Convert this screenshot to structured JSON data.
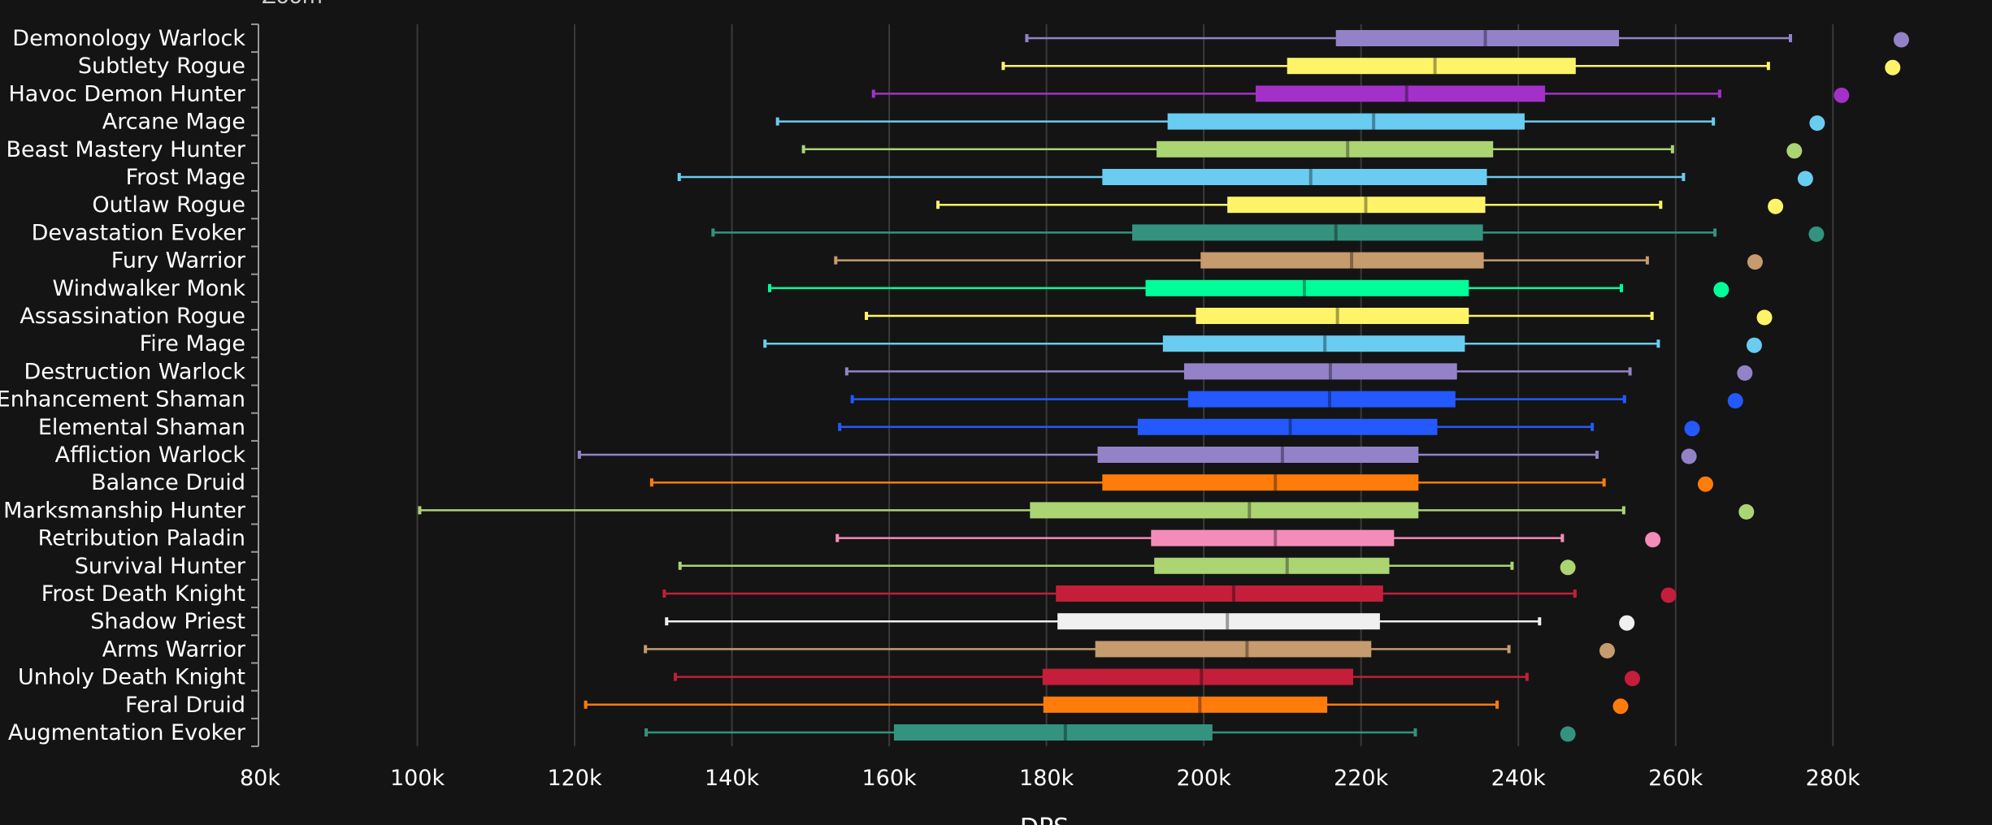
{
  "zoom_label": "Zoom",
  "chart_data": {
    "type": "boxplot",
    "orientation": "horizontal",
    "xlabel": "DPS",
    "xlim": [
      80000,
      290000
    ],
    "ticks": [
      80000,
      100000,
      120000,
      140000,
      160000,
      180000,
      200000,
      220000,
      240000,
      260000,
      280000
    ],
    "tick_labels": [
      "80k",
      "100k",
      "120k",
      "140k",
      "160k",
      "180k",
      "200k",
      "220k",
      "240k",
      "260k",
      "280k"
    ],
    "grid": true,
    "series": [
      {
        "name": "Demonology Warlock",
        "color": "#9482c9",
        "min": 177500,
        "q1": 216800,
        "median": 235800,
        "q3": 252800,
        "max": 274600,
        "outlier": 288700
      },
      {
        "name": "Subtlety Rogue",
        "color": "#fff468",
        "min": 174500,
        "q1": 210600,
        "median": 229400,
        "q3": 247300,
        "max": 271800,
        "outlier": 287600
      },
      {
        "name": "Havoc Demon Hunter",
        "color": "#a330c9",
        "min": 158000,
        "q1": 206600,
        "median": 225800,
        "q3": 243400,
        "max": 265600,
        "outlier": 281100
      },
      {
        "name": "Arcane Mage",
        "color": "#69ccf0",
        "min": 145800,
        "q1": 195400,
        "median": 221600,
        "q3": 240800,
        "max": 264800,
        "outlier": 278000
      },
      {
        "name": "Beast Mastery Hunter",
        "color": "#abd473",
        "min": 149100,
        "q1": 194000,
        "median": 218300,
        "q3": 236800,
        "max": 259600,
        "outlier": 275100
      },
      {
        "name": "Frost Mage",
        "color": "#69ccf0",
        "min": 133300,
        "q1": 187100,
        "median": 213600,
        "q3": 236000,
        "max": 261000,
        "outlier": 276500
      },
      {
        "name": "Outlaw Rogue",
        "color": "#fff468",
        "min": 166200,
        "q1": 203000,
        "median": 220600,
        "q3": 235800,
        "max": 258100,
        "outlier": 272700
      },
      {
        "name": "Devastation Evoker",
        "color": "#33937f",
        "min": 137600,
        "q1": 190900,
        "median": 216800,
        "q3": 235500,
        "max": 265000,
        "outlier": 277900
      },
      {
        "name": "Fury Warrior",
        "color": "#c69b6d",
        "min": 153200,
        "q1": 199600,
        "median": 218800,
        "q3": 235600,
        "max": 256400,
        "outlier": 270100
      },
      {
        "name": "Windwalker Monk",
        "color": "#00ff98",
        "min": 144800,
        "q1": 192600,
        "median": 212800,
        "q3": 233700,
        "max": 253100,
        "outlier": 265800
      },
      {
        "name": "Assassination Rogue",
        "color": "#fff468",
        "min": 157100,
        "q1": 199000,
        "median": 217000,
        "q3": 233700,
        "max": 257000,
        "outlier": 271300
      },
      {
        "name": "Fire Mage",
        "color": "#69ccf0",
        "min": 144200,
        "q1": 194800,
        "median": 215400,
        "q3": 233200,
        "max": 257800,
        "outlier": 270000
      },
      {
        "name": "Destruction Warlock",
        "color": "#9482c9",
        "min": 154600,
        "q1": 197500,
        "median": 216100,
        "q3": 232200,
        "max": 254200,
        "outlier": 268800
      },
      {
        "name": "Enhancement Shaman",
        "color": "#2359ff",
        "min": 155300,
        "q1": 198000,
        "median": 216000,
        "q3": 232000,
        "max": 253500,
        "outlier": 267600
      },
      {
        "name": "Elemental Shaman",
        "color": "#2359ff",
        "min": 153700,
        "q1": 191600,
        "median": 211000,
        "q3": 229700,
        "max": 249400,
        "outlier": 262100
      },
      {
        "name": "Affliction Warlock",
        "color": "#9482c9",
        "min": 120600,
        "q1": 186500,
        "median": 210000,
        "q3": 227300,
        "max": 250000,
        "outlier": 261700
      },
      {
        "name": "Balance Druid",
        "color": "#ff7c0a",
        "min": 129800,
        "q1": 187100,
        "median": 209100,
        "q3": 227300,
        "max": 250900,
        "outlier": 263800
      },
      {
        "name": "Marksmanship Hunter",
        "color": "#abd473",
        "min": 100300,
        "q1": 177900,
        "median": 205800,
        "q3": 227300,
        "max": 253400,
        "outlier": 269000
      },
      {
        "name": "Retribution Paladin",
        "color": "#f48cba",
        "min": 153400,
        "q1": 193300,
        "median": 209100,
        "q3": 224200,
        "max": 245600,
        "outlier": 257100
      },
      {
        "name": "Survival Hunter",
        "color": "#abd473",
        "min": 133400,
        "q1": 193700,
        "median": 210600,
        "q3": 223600,
        "max": 239200,
        "outlier": 246300
      },
      {
        "name": "Frost Death Knight",
        "color": "#c41e3a",
        "min": 131400,
        "q1": 181200,
        "median": 203800,
        "q3": 222800,
        "max": 247200,
        "outlier": 259100
      },
      {
        "name": "Shadow Priest",
        "color": "#f0f0f0",
        "min": 131700,
        "q1": 181400,
        "median": 203000,
        "q3": 222400,
        "max": 242700,
        "outlier": 253800
      },
      {
        "name": "Arms Warrior",
        "color": "#c69b6d",
        "min": 129000,
        "q1": 186200,
        "median": 205500,
        "q3": 221300,
        "max": 238800,
        "outlier": 251300
      },
      {
        "name": "Unholy Death Knight",
        "color": "#c41e3a",
        "min": 132800,
        "q1": 179500,
        "median": 199700,
        "q3": 219000,
        "max": 241100,
        "outlier": 254500
      },
      {
        "name": "Feral Druid",
        "color": "#ff7c0a",
        "min": 121400,
        "q1": 179600,
        "median": 199500,
        "q3": 215700,
        "max": 237300,
        "outlier": 253000
      },
      {
        "name": "Augmentation Evoker",
        "color": "#33937f",
        "min": 129100,
        "q1": 160600,
        "median": 182400,
        "q3": 201100,
        "max": 226900,
        "outlier": 246300
      }
    ]
  }
}
